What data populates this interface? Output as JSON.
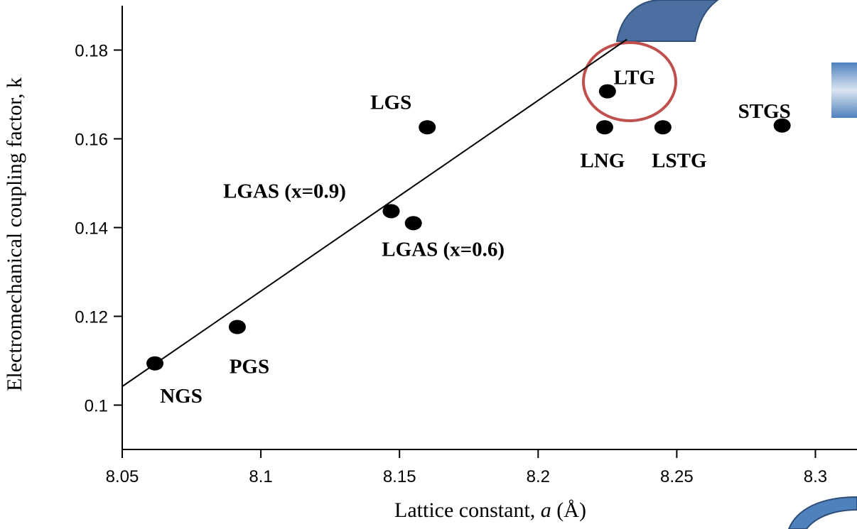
{
  "chart_data": {
    "type": "scatter",
    "xlabel": [
      "Lattice constant, ",
      "a",
      " (Å)"
    ],
    "ylabel": "Electromechanical coupling factor, k",
    "labels": [
      "NGS",
      "PGS",
      "LGAS (x=0.9)",
      "LGAS (x=0.6)",
      "LGS",
      "LTG",
      "LNG",
      "LSTG",
      "STGS"
    ],
    "x": [
      8.0618,
      8.0915,
      8.147,
      8.155,
      8.16,
      8.225,
      8.224,
      8.245,
      8.288
    ],
    "y": [
      0.1094,
      0.1176,
      0.1437,
      0.141,
      0.1626,
      0.1707,
      0.1626,
      0.1626,
      0.163
    ],
    "color": "#000000",
    "fit_line": {
      "x": [
        8.05,
        8.232
      ],
      "y": [
        0.1042,
        0.1824
      ]
    },
    "xlim": [
      8.05,
      8.315
    ],
    "ylim": [
      0.09,
      0.19
    ],
    "xticks": [
      8.05,
      8.1,
      8.15,
      8.2,
      8.25,
      8.3
    ],
    "yticks": [
      0.1,
      0.12,
      0.14,
      0.16,
      0.18
    ]
  }
}
